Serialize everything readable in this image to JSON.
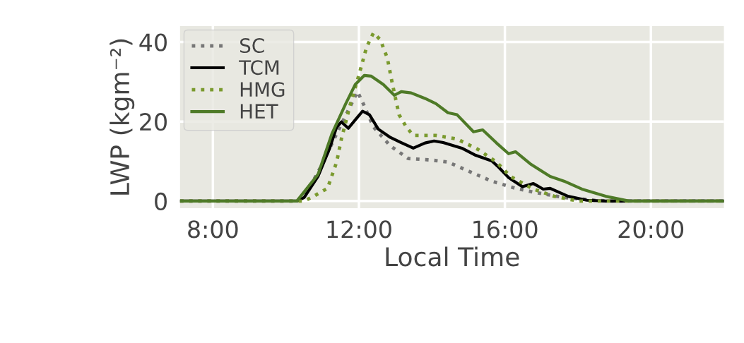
{
  "chart_data": {
    "type": "line",
    "xlabel": "Local Time",
    "ylabel": "LWP (kgm⁻²)",
    "xlim": [
      7.1,
      22
    ],
    "xticks": [
      {
        "value": 8,
        "label": "8:00"
      },
      {
        "value": 12,
        "label": "12:00"
      },
      {
        "value": 16,
        "label": "16:00"
      },
      {
        "value": 20,
        "label": "20:00"
      }
    ],
    "ylim": [
      -1.8,
      44
    ],
    "yticks": [
      0,
      20,
      40
    ],
    "grid": true,
    "legend": "top left",
    "series": [
      {
        "name": "SC",
        "color": "#777777",
        "line_style": "dotted",
        "x": [
          7.1,
          10.3,
          10.6,
          10.95,
          11.39,
          11.96,
          12.1,
          12.4,
          12.86,
          13.35,
          14.0,
          14.44,
          15.01,
          15.64,
          16.29,
          16.86,
          17.62,
          18.44,
          19.0,
          22
        ],
        "values": [
          0,
          0,
          2.5,
          8.5,
          16.9,
          27.5,
          24.9,
          18.6,
          13.9,
          10.7,
          10.3,
          9.8,
          7.5,
          5.0,
          3.2,
          2.1,
          0.9,
          0.2,
          0,
          0
        ]
      },
      {
        "name": "TCM",
        "color": "#000000",
        "line_style": "solid",
        "x": [
          7.1,
          10.3,
          10.5,
          10.88,
          11.2,
          11.39,
          11.52,
          11.71,
          11.9,
          12.1,
          12.29,
          12.53,
          12.86,
          13.16,
          13.49,
          13.81,
          14.06,
          14.31,
          14.82,
          15.2,
          15.64,
          15.83,
          16.1,
          16.48,
          16.78,
          17.05,
          17.24,
          17.73,
          18.25,
          18.76,
          22
        ],
        "values": [
          0,
          0,
          0.9,
          6.2,
          13.3,
          18.6,
          19.9,
          18.3,
          20.4,
          22.6,
          21.7,
          18.1,
          16.0,
          14.7,
          13.3,
          14.6,
          15.1,
          14.7,
          13.3,
          11.5,
          10.1,
          8.5,
          5.9,
          3.6,
          4.4,
          3.0,
          3.2,
          1.2,
          0.2,
          0,
          0
        ]
      },
      {
        "name": "HMG",
        "color": "#7a9a2e",
        "line_style": "dotted",
        "x": [
          7.1,
          10.5,
          10.76,
          11.14,
          11.39,
          11.52,
          11.77,
          12.02,
          12.21,
          12.4,
          12.59,
          12.78,
          12.91,
          13.1,
          13.3,
          13.49,
          14.11,
          14.69,
          15.26,
          15.77,
          16.15,
          16.78,
          17.35,
          18.0,
          22
        ],
        "values": [
          0,
          0,
          1.2,
          3.2,
          9.8,
          15.6,
          24.5,
          32.3,
          38.7,
          42.3,
          40.5,
          35.9,
          29.8,
          21.7,
          18.6,
          16.5,
          16.5,
          15.6,
          13.0,
          9.8,
          6.2,
          3.0,
          1.2,
          0,
          0
        ]
      },
      {
        "name": "HET",
        "color": "#4e7a27",
        "line_style": "solid",
        "x": [
          7.1,
          10.3,
          10.88,
          11.26,
          11.64,
          11.9,
          12.15,
          12.34,
          12.67,
          12.97,
          13.16,
          13.43,
          13.81,
          14.11,
          14.44,
          14.69,
          15.14,
          15.39,
          15.77,
          16.1,
          16.29,
          16.72,
          17.24,
          17.62,
          18.11,
          18.76,
          19.4,
          22
        ],
        "values": [
          0,
          0,
          6.7,
          16.9,
          24.5,
          29.3,
          31.6,
          31.4,
          29.3,
          26.6,
          27.5,
          27.2,
          25.8,
          24.5,
          22.2,
          21.7,
          17.4,
          17.9,
          14.6,
          11.9,
          12.4,
          9.2,
          6.2,
          5.0,
          3.0,
          1.2,
          0,
          0
        ]
      }
    ]
  }
}
